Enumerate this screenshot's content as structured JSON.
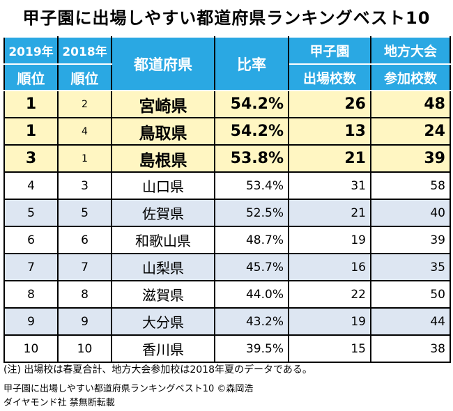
{
  "title": "甲子園に出場しやすい都道府県ランキングベスト10",
  "header": {
    "col2019_year": "2019年",
    "col2019_label": "順位",
    "col2018_year": "2018年",
    "col2018_label": "順位",
    "prefecture": "都道府県",
    "ratio": "比率",
    "koshien_line1": "甲子園",
    "koshien_line2": "出場校数",
    "regional_line1": "地方大会",
    "regional_line2": "参加校数"
  },
  "rows": [
    {
      "rank2019": "1",
      "rank2018": "2",
      "prefecture": "宮崎県",
      "ratio": "54.2%",
      "koshien": "26",
      "regional": "48"
    },
    {
      "rank2019": "1",
      "rank2018": "4",
      "prefecture": "鳥取県",
      "ratio": "54.2%",
      "koshien": "13",
      "regional": "24"
    },
    {
      "rank2019": "3",
      "rank2018": "1",
      "prefecture": "島根県",
      "ratio": "53.8%",
      "koshien": "21",
      "regional": "39"
    },
    {
      "rank2019": "4",
      "rank2018": "3",
      "prefecture": "山口県",
      "ratio": "53.4%",
      "koshien": "31",
      "regional": "58"
    },
    {
      "rank2019": "5",
      "rank2018": "5",
      "prefecture": "佐賀県",
      "ratio": "52.5%",
      "koshien": "21",
      "regional": "40"
    },
    {
      "rank2019": "6",
      "rank2018": "6",
      "prefecture": "和歌山県",
      "ratio": "48.7%",
      "koshien": "19",
      "regional": "39"
    },
    {
      "rank2019": "7",
      "rank2018": "7",
      "prefecture": "山梨県",
      "ratio": "45.7%",
      "koshien": "16",
      "regional": "35"
    },
    {
      "rank2019": "8",
      "rank2018": "8",
      "prefecture": "滋賀県",
      "ratio": "44.0%",
      "koshien": "22",
      "regional": "50"
    },
    {
      "rank2019": "9",
      "rank2018": "9",
      "prefecture": "大分県",
      "ratio": "43.2%",
      "koshien": "19",
      "regional": "44"
    },
    {
      "rank2019": "10",
      "rank2018": "10",
      "prefecture": "香川県",
      "ratio": "39.5%",
      "koshien": "15",
      "regional": "38"
    }
  ],
  "note": "(注) 出場校は春夏合計、地方大会参加校は2018年夏のデータである。",
  "credit_line1": "甲子園に出場しやすい都道府県ランキングベスト10 ©森岡浩",
  "credit_line2": "ダイヤモンド社 禁無断転載",
  "colors": {
    "header_bg": "#2aa8e3",
    "top3_bg": "#fff6c2",
    "alt_bg": "#dde6f2"
  }
}
